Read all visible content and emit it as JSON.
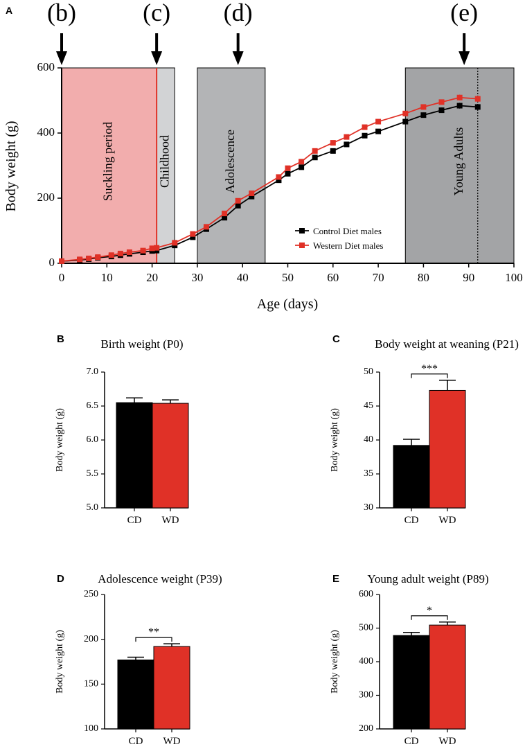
{
  "colors": {
    "control": "#000000",
    "western": "#e03127",
    "suckling_fill": "#f2adad",
    "childhood_fill": "#d2d3d5",
    "adolescence_fill": "#b3b4b6",
    "young_adult_fill": "#a3a4a6",
    "phase_line": "#e03127"
  },
  "chart_data": [
    {
      "panel": "A",
      "type": "line",
      "xlabel": "Age (days)",
      "ylabel": "Body weight (g)",
      "xlim": [
        0,
        100
      ],
      "ylim": [
        0,
        600
      ],
      "xticks": [
        "0",
        "10",
        "20",
        "30",
        "40",
        "50",
        "60",
        "70",
        "80",
        "90",
        "100"
      ],
      "yticks": [
        "0",
        "200",
        "400",
        "600"
      ],
      "periods": [
        {
          "label": "Suckling period",
          "from": 0,
          "to": 21,
          "fill": "suckling"
        },
        {
          "label": "Childhood",
          "from": 21,
          "to": 25,
          "fill": "childhood"
        },
        {
          "label": "Adolescence",
          "from": 30,
          "to": 45,
          "fill": "adolescence"
        },
        {
          "label": "Young Adults",
          "from": 76,
          "to": 100,
          "fill": "young_adult"
        }
      ],
      "arrows": [
        {
          "label": "(b)",
          "x": 0
        },
        {
          "label": "(c)",
          "x": 21
        },
        {
          "label": "(d)",
          "x": 39
        },
        {
          "label": "(e)",
          "x": 89
        }
      ],
      "dotted_line_x": 92,
      "legend_position": "bottom-right",
      "series": [
        {
          "name": "Control Diet males",
          "color": "control",
          "x": [
            0,
            4,
            6,
            8,
            11,
            13,
            15,
            18,
            20,
            21,
            25,
            29,
            32,
            36,
            39,
            42,
            48,
            50,
            53,
            56,
            60,
            63,
            67,
            70,
            76,
            80,
            84,
            88,
            92
          ],
          "y": [
            6.5,
            10,
            13,
            17,
            21,
            25,
            29,
            34,
            38,
            39,
            55,
            80,
            105,
            140,
            177,
            205,
            255,
            275,
            295,
            325,
            345,
            365,
            392,
            405,
            435,
            455,
            470,
            484,
            480
          ],
          "err": [
            1,
            1,
            1,
            1,
            1,
            1,
            1,
            1,
            1,
            1,
            2,
            3,
            3,
            5,
            3,
            4,
            5,
            5,
            5,
            5,
            5,
            6,
            6,
            6,
            8,
            8,
            8,
            9,
            9
          ]
        },
        {
          "name": "Western Diet males",
          "color": "western",
          "x": [
            0,
            4,
            6,
            8,
            11,
            13,
            15,
            18,
            20,
            21,
            25,
            29,
            32,
            36,
            39,
            42,
            48,
            50,
            53,
            56,
            60,
            63,
            67,
            70,
            76,
            80,
            84,
            88,
            92
          ],
          "y": [
            6.5,
            12,
            15,
            19,
            25,
            30,
            34,
            39,
            46,
            47.5,
            63,
            90,
            112,
            153,
            192,
            215,
            265,
            292,
            312,
            345,
            370,
            388,
            418,
            435,
            460,
            480,
            495,
            509,
            505
          ],
          "err": [
            1,
            1,
            1,
            1,
            1,
            1,
            1,
            1,
            1,
            1.5,
            2,
            3,
            3,
            5,
            3,
            4,
            5,
            5,
            5,
            5,
            5,
            6,
            6,
            6,
            8,
            8,
            8,
            9,
            9
          ]
        }
      ]
    },
    {
      "panel": "B",
      "type": "bar",
      "title": "Birth weight (P0)",
      "ylabel": "Body weight (g)",
      "categories": [
        "CD",
        "WD"
      ],
      "values": [
        6.55,
        6.54
      ],
      "errors": [
        0.07,
        0.05
      ],
      "ylim": [
        5.0,
        7.0
      ],
      "yticks": [
        "5.0",
        "5.5",
        "6.0",
        "6.5",
        "7.0"
      ],
      "significance": ""
    },
    {
      "panel": "C",
      "type": "bar",
      "title": "Body weight at weaning (P21)",
      "ylabel": "Body weight (g)",
      "categories": [
        "CD",
        "WD"
      ],
      "values": [
        39.2,
        47.3
      ],
      "errors": [
        0.9,
        1.5
      ],
      "ylim": [
        30,
        50
      ],
      "yticks": [
        "30",
        "35",
        "40",
        "45",
        "50"
      ],
      "significance": "***"
    },
    {
      "panel": "D",
      "type": "bar",
      "title": "Adolescence weight (P39)",
      "ylabel": "Body weight (g)",
      "categories": [
        "CD",
        "WD"
      ],
      "values": [
        177,
        192
      ],
      "errors": [
        3,
        3
      ],
      "ylim": [
        100,
        250
      ],
      "yticks": [
        "100",
        "150",
        "200",
        "250"
      ],
      "significance": "**"
    },
    {
      "panel": "E",
      "type": "bar",
      "title": "Young adult weight  (P89)",
      "ylabel": "Body weight (g)",
      "categories": [
        "CD",
        "WD"
      ],
      "values": [
        478,
        509
      ],
      "errors": [
        9,
        9
      ],
      "ylim": [
        200,
        600
      ],
      "yticks": [
        "200",
        "300",
        "400",
        "500",
        "600"
      ],
      "significance": "*"
    }
  ]
}
